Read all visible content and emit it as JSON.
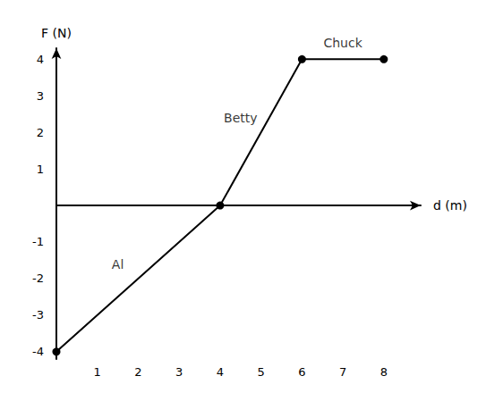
{
  "chart_data": {
    "type": "line",
    "x_label": "d (m)",
    "y_label": "F (N)",
    "x": [
      0,
      4,
      6,
      8
    ],
    "values": [
      -4,
      0,
      4,
      4
    ],
    "color": "#000000",
    "marker": "circle",
    "line_style": "solid",
    "xlim": [
      0,
      8.9
    ],
    "xticks": [
      1,
      2,
      3,
      4,
      5,
      6,
      7,
      8
    ],
    "ylim": [
      -4.2,
      4.3
    ],
    "yticks": [
      -4,
      -3,
      -2,
      -1,
      1,
      2,
      3,
      4
    ],
    "grid": false,
    "annotations": [
      {
        "text": "Al",
        "x": 1.5,
        "y": -1.6
      },
      {
        "text": "Betty",
        "x": 4.5,
        "y": 2.4
      },
      {
        "text": "Chuck",
        "x": 7.0,
        "y": 4.45
      }
    ]
  }
}
